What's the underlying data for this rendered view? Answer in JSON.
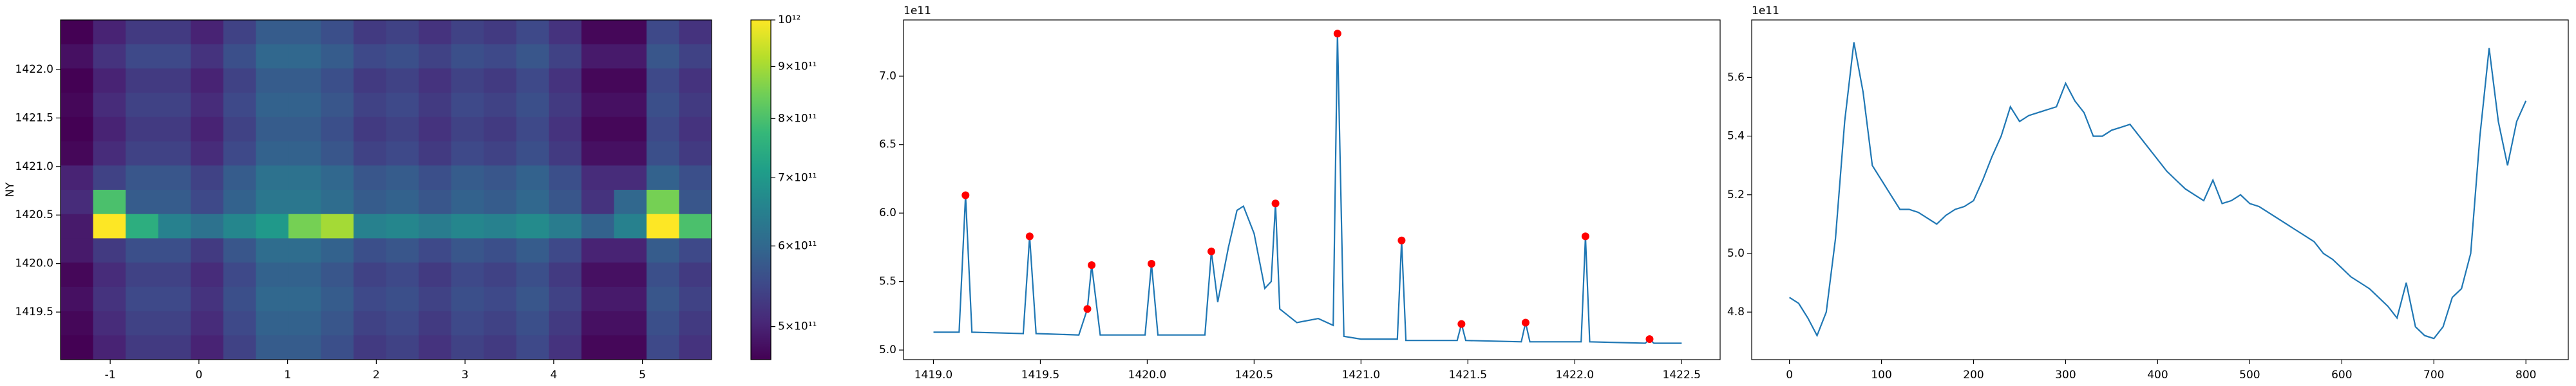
{
  "chart_data": [
    {
      "type": "heatmap",
      "ylabel": "NY",
      "colormap": "viridis",
      "xlim": [
        -1.56,
        5.78
      ],
      "ylim": [
        1419.01,
        1422.51
      ],
      "xticks": [
        -1,
        0,
        1,
        2,
        3,
        4,
        5
      ],
      "yticks": [
        1419.5,
        {
          "value": 1420,
          "label": "1420.0"
        },
        1420.5,
        {
          "value": 1421,
          "label": "1421.0"
        },
        1421.5,
        {
          "value": 1422,
          "label": "1422.0"
        }
      ],
      "z": [
        [
          460000000000.0,
          500000000000.0,
          530000000000.0,
          530000000000.0,
          500000000000.0,
          540000000000.0,
          580000000000.0,
          580000000000.0,
          560000000000.0,
          530000000000.0,
          540000000000.0,
          520000000000.0,
          540000000000.0,
          530000000000.0,
          550000000000.0,
          520000000000.0,
          470000000000.0,
          470000000000.0,
          550000000000.0,
          520000000000.0
        ],
        [
          480000000000.0,
          520000000000.0,
          550000000000.0,
          550000000000.0,
          520000000000.0,
          560000000000.0,
          600000000000.0,
          600000000000.0,
          580000000000.0,
          550000000000.0,
          560000000000.0,
          540000000000.0,
          560000000000.0,
          550000000000.0,
          570000000000.0,
          540000000000.0,
          490000000000.0,
          490000000000.0,
          570000000000.0,
          540000000000.0
        ],
        [
          460000000000.0,
          500000000000.0,
          530000000000.0,
          530000000000.0,
          500000000000.0,
          540000000000.0,
          580000000000.0,
          580000000000.0,
          560000000000.0,
          530000000000.0,
          540000000000.0,
          520000000000.0,
          540000000000.0,
          530000000000.0,
          550000000000.0,
          520000000000.0,
          470000000000.0,
          470000000000.0,
          550000000000.0,
          520000000000.0
        ],
        [
          470000000000.0,
          510000000000.0,
          540000000000.0,
          540000000000.0,
          510000000000.0,
          550000000000.0,
          590000000000.0,
          590000000000.0,
          570000000000.0,
          540000000000.0,
          550000000000.0,
          530000000000.0,
          550000000000.0,
          540000000000.0,
          560000000000.0,
          530000000000.0,
          480000000000.0,
          480000000000.0,
          560000000000.0,
          530000000000.0
        ],
        [
          460000000000.0,
          500000000000.0,
          530000000000.0,
          530000000000.0,
          500000000000.0,
          540000000000.0,
          580000000000.0,
          580000000000.0,
          560000000000.0,
          530000000000.0,
          540000000000.0,
          520000000000.0,
          540000000000.0,
          530000000000.0,
          550000000000.0,
          520000000000.0,
          470000000000.0,
          470000000000.0,
          550000000000.0,
          520000000000.0
        ],
        [
          470000000000.0,
          510000000000.0,
          540000000000.0,
          540000000000.0,
          510000000000.0,
          550000000000.0,
          590000000000.0,
          590000000000.0,
          570000000000.0,
          540000000000.0,
          550000000000.0,
          530000000000.0,
          550000000000.0,
          540000000000.0,
          560000000000.0,
          530000000000.0,
          480000000000.0,
          480000000000.0,
          560000000000.0,
          530000000000.0
        ],
        [
          500000000000.0,
          540000000000.0,
          570000000000.0,
          570000000000.0,
          540000000000.0,
          580000000000.0,
          620000000000.0,
          620000000000.0,
          600000000000.0,
          570000000000.0,
          580000000000.0,
          560000000000.0,
          580000000000.0,
          570000000000.0,
          590000000000.0,
          560000000000.0,
          510000000000.0,
          510000000000.0,
          590000000000.0,
          560000000000.0
        ],
        [
          510000000000.0,
          800000000000.0,
          580000000000.0,
          580000000000.0,
          550000000000.0,
          590000000000.0,
          630000000000.0,
          630000000000.0,
          610000000000.0,
          580000000000.0,
          590000000000.0,
          570000000000.0,
          590000000000.0,
          580000000000.0,
          600000000000.0,
          570000000000.0,
          520000000000.0,
          600000000000.0,
          850000000000.0,
          570000000000.0
        ],
        [
          490000000000.0,
          1000000000000.0,
          750000000000.0,
          650000000000.0,
          620000000000.0,
          660000000000.0,
          700000000000.0,
          850000000000.0,
          900000000000.0,
          650000000000.0,
          660000000000.0,
          640000000000.0,
          660000000000.0,
          650000000000.0,
          670000000000.0,
          640000000000.0,
          590000000000.0,
          650000000000.0,
          1000000000000.0,
          800000000000.0
        ],
        [
          490000000000.0,
          530000000000.0,
          560000000000.0,
          560000000000.0,
          530000000000.0,
          570000000000.0,
          610000000000.0,
          610000000000.0,
          590000000000.0,
          560000000000.0,
          570000000000.0,
          550000000000.0,
          570000000000.0,
          560000000000.0,
          580000000000.0,
          550000000000.0,
          500000000000.0,
          500000000000.0,
          580000000000.0,
          550000000000.0
        ],
        [
          470000000000.0,
          510000000000.0,
          540000000000.0,
          540000000000.0,
          510000000000.0,
          550000000000.0,
          590000000000.0,
          590000000000.0,
          570000000000.0,
          540000000000.0,
          550000000000.0,
          530000000000.0,
          550000000000.0,
          540000000000.0,
          560000000000.0,
          530000000000.0,
          480000000000.0,
          480000000000.0,
          560000000000.0,
          530000000000.0
        ],
        [
          480000000000.0,
          520000000000.0,
          550000000000.0,
          550000000000.0,
          520000000000.0,
          560000000000.0,
          600000000000.0,
          600000000000.0,
          580000000000.0,
          550000000000.0,
          560000000000.0,
          540000000000.0,
          560000000000.0,
          550000000000.0,
          570000000000.0,
          540000000000.0,
          490000000000.0,
          490000000000.0,
          570000000000.0,
          540000000000.0
        ],
        [
          470000000000.0,
          510000000000.0,
          540000000000.0,
          540000000000.0,
          510000000000.0,
          550000000000.0,
          590000000000.0,
          590000000000.0,
          570000000000.0,
          540000000000.0,
          550000000000.0,
          530000000000.0,
          550000000000.0,
          540000000000.0,
          560000000000.0,
          530000000000.0,
          480000000000.0,
          480000000000.0,
          560000000000.0,
          530000000000.0
        ],
        [
          460000000000.0,
          500000000000.0,
          530000000000.0,
          530000000000.0,
          500000000000.0,
          540000000000.0,
          580000000000.0,
          580000000000.0,
          560000000000.0,
          530000000000.0,
          540000000000.0,
          520000000000.0,
          540000000000.0,
          530000000000.0,
          550000000000.0,
          520000000000.0,
          470000000000.0,
          470000000000.0,
          550000000000.0,
          520000000000.0
        ]
      ],
      "colorbar": {
        "scale": "log",
        "lim": [
          464000000000.0,
          1000000000000.0
        ],
        "ticks": [
          {
            "value": 500000000000.0,
            "label": "5×10¹¹"
          },
          {
            "value": 600000000000.0,
            "label": "6×10¹¹"
          },
          {
            "value": 700000000000.0,
            "label": "7×10¹¹"
          },
          {
            "value": 800000000000.0,
            "label": "8×10¹¹"
          },
          {
            "value": 900000000000.0,
            "label": "9×10¹¹"
          },
          {
            "value": 1000000000000.0,
            "label": "10¹²"
          }
        ]
      }
    },
    {
      "type": "line",
      "offset_label": "1e11",
      "xlim": [
        1418.86,
        1422.68
      ],
      "ylim": [
        4.93,
        7.41
      ],
      "xticks": [
        {
          "value": 1419,
          "label": "1419.0"
        },
        1419.5,
        {
          "value": 1420,
          "label": "1420.0"
        },
        1420.5,
        {
          "value": 1421,
          "label": "1421.0"
        },
        1421.5,
        {
          "value": 1422,
          "label": "1422.0"
        },
        1422.5
      ],
      "yticks": [
        {
          "value": 5,
          "label": "5.0"
        },
        5.5,
        {
          "value": 6,
          "label": "6.0"
        },
        6.5,
        {
          "value": 7,
          "label": "7.0"
        }
      ],
      "series": [
        {
          "mode": "line",
          "color": "#1f77b4",
          "x": [
            1419.0,
            1419.12,
            1419.15,
            1419.18,
            1419.42,
            1419.45,
            1419.48,
            1419.68,
            1419.72,
            1419.74,
            1419.78,
            1419.99,
            1420.02,
            1420.05,
            1420.27,
            1420.3,
            1420.33,
            1420.38,
            1420.42,
            1420.45,
            1420.5,
            1420.55,
            1420.58,
            1420.6,
            1420.62,
            1420.7,
            1420.8,
            1420.87,
            1420.89,
            1420.92,
            1421.0,
            1421.17,
            1421.19,
            1421.21,
            1421.45,
            1421.47,
            1421.49,
            1421.75,
            1421.77,
            1421.79,
            1422.03,
            1422.05,
            1422.07,
            1422.33,
            1422.35,
            1422.37,
            1422.5
          ],
          "values": [
            5.13,
            5.13,
            6.13,
            5.13,
            5.12,
            5.83,
            5.12,
            5.11,
            5.3,
            5.62,
            5.11,
            5.11,
            5.63,
            5.11,
            5.11,
            5.72,
            5.35,
            5.75,
            6.02,
            6.05,
            5.85,
            5.45,
            5.5,
            6.07,
            5.3,
            5.2,
            5.23,
            5.18,
            7.31,
            5.1,
            5.08,
            5.08,
            5.8,
            5.07,
            5.07,
            5.19,
            5.07,
            5.06,
            5.2,
            5.06,
            5.06,
            5.83,
            5.06,
            5.05,
            5.08,
            5.05,
            5.05
          ]
        },
        {
          "mode": "markers",
          "color": "red",
          "x": [
            1419.15,
            1419.45,
            1419.72,
            1419.74,
            1420.02,
            1420.3,
            1420.6,
            1420.89,
            1421.19,
            1421.47,
            1421.77,
            1422.05,
            1422.35
          ],
          "values": [
            6.13,
            5.83,
            5.3,
            5.62,
            5.63,
            5.72,
            6.07,
            7.31,
            5.8,
            5.19,
            5.2,
            5.83,
            5.08
          ]
        }
      ]
    },
    {
      "type": "line",
      "offset_label": "1e11",
      "xlim": [
        -41,
        846
      ],
      "ylim": [
        4.638,
        5.796
      ],
      "xticks": [
        0,
        100,
        200,
        300,
        400,
        500,
        600,
        700,
        800
      ],
      "yticks": [
        4.8,
        {
          "value": 5,
          "label": "5.0"
        },
        5.2,
        5.4,
        5.6
      ],
      "series": [
        {
          "mode": "line",
          "color": "#1f77b4",
          "x": [
            0,
            10,
            20,
            30,
            40,
            50,
            60,
            70,
            80,
            90,
            100,
            110,
            120,
            130,
            140,
            150,
            160,
            170,
            180,
            190,
            200,
            210,
            220,
            230,
            240,
            250,
            260,
            270,
            280,
            290,
            300,
            310,
            320,
            330,
            340,
            350,
            360,
            370,
            380,
            390,
            400,
            410,
            420,
            430,
            440,
            450,
            460,
            470,
            480,
            490,
            500,
            510,
            520,
            530,
            540,
            550,
            560,
            570,
            580,
            590,
            600,
            610,
            620,
            630,
            640,
            650,
            660,
            670,
            680,
            690,
            700,
            710,
            720,
            730,
            740,
            750,
            760,
            770,
            780,
            790,
            800
          ],
          "values": [
            4.85,
            4.83,
            4.78,
            4.72,
            4.8,
            5.05,
            5.45,
            5.72,
            5.55,
            5.3,
            5.25,
            5.2,
            5.15,
            5.15,
            5.14,
            5.12,
            5.1,
            5.13,
            5.15,
            5.16,
            5.18,
            5.25,
            5.33,
            5.4,
            5.5,
            5.45,
            5.47,
            5.48,
            5.49,
            5.5,
            5.58,
            5.52,
            5.48,
            5.4,
            5.4,
            5.42,
            5.43,
            5.44,
            5.4,
            5.36,
            5.32,
            5.28,
            5.25,
            5.22,
            5.2,
            5.18,
            5.25,
            5.17,
            5.18,
            5.2,
            5.17,
            5.16,
            5.14,
            5.12,
            5.1,
            5.08,
            5.06,
            5.04,
            5.0,
            4.98,
            4.95,
            4.92,
            4.9,
            4.88,
            4.85,
            4.82,
            4.78,
            4.9,
            4.75,
            4.72,
            4.71,
            4.75,
            4.85,
            4.88,
            5.0,
            5.4,
            5.7,
            5.45,
            5.3,
            5.45,
            5.52
          ]
        }
      ]
    }
  ]
}
